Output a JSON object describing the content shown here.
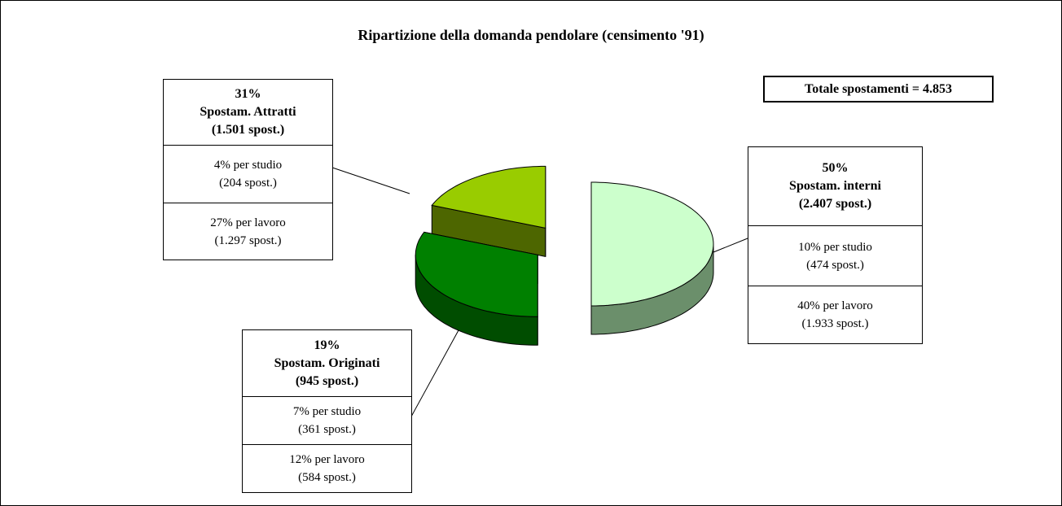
{
  "chart_data": {
    "type": "pie",
    "title": "Ripartizione della domanda pendolare (censimento '91)",
    "annotation": "Totale spostamenti = 4.853",
    "categories": [
      "Spostam. interni",
      "Spostam. Attratti",
      "Spostam. Originati"
    ],
    "values": [
      50,
      31,
      19
    ],
    "value_labels": [
      "50%",
      "31%",
      "19%"
    ],
    "counts": [
      "(2.407 spost.)",
      "(1.501 spost.)",
      "(945 spost.)"
    ],
    "breakdown": [
      [
        {
          "label": "10% per studio",
          "count": "(474 spost.)"
        },
        {
          "label": "40% per lavoro",
          "count": "(1.933 spost.)"
        }
      ],
      [
        {
          "label": "4% per studio",
          "count": "(204 spost.)"
        },
        {
          "label": "27% per lavoro",
          "count": "(1.297 spost.)"
        }
      ],
      [
        {
          "label": "7% per studio",
          "count": "(361 spost.)"
        },
        {
          "label": "12% per lavoro",
          "count": "(584 spost.)"
        }
      ]
    ],
    "colors": [
      "#ccffcc",
      "#008000",
      "#99cc00"
    ],
    "side_colors": [
      "#6b8f6b",
      "#004d00",
      "#4d6600"
    ]
  }
}
